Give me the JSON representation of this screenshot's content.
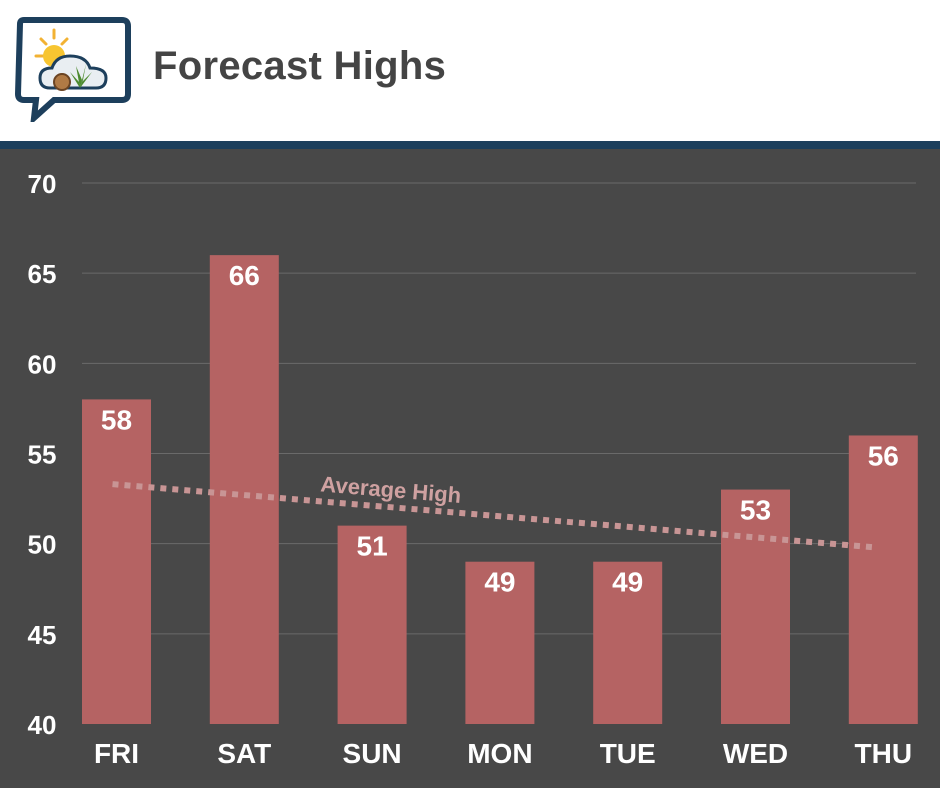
{
  "header": {
    "title": "Forecast Highs",
    "logo_icon": "weather-cannabis-logo-icon"
  },
  "colors": {
    "bar": "#b56363",
    "background": "#484848",
    "header_rule": "#1d3f5c",
    "grid": "#6a6a6a",
    "average_line": "#c89595"
  },
  "chart_data": {
    "type": "bar",
    "title": "Forecast Highs",
    "categories": [
      "FRI",
      "SAT",
      "SUN",
      "MON",
      "TUE",
      "WED",
      "THU"
    ],
    "values": [
      58,
      66,
      51,
      49,
      49,
      53,
      56
    ],
    "ylim": [
      40,
      70
    ],
    "yticks": [
      40,
      45,
      50,
      55,
      60,
      65,
      70
    ],
    "grid": true,
    "data_labels": true,
    "average_line": {
      "label": "Average High",
      "start": 53.3,
      "end": 49.8,
      "style": "dotted"
    }
  }
}
